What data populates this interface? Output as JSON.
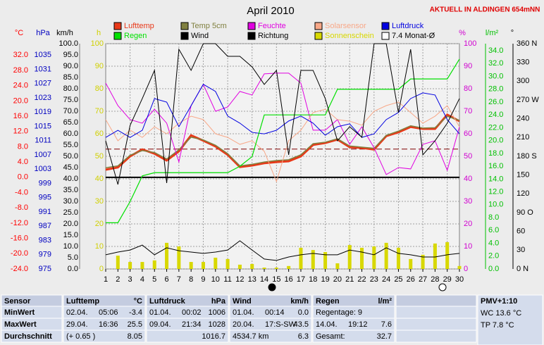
{
  "chart_data": {
    "type": "line",
    "title": "April 2010",
    "subtitle": "AKTUELL IN ALDINGEN 654mNN",
    "x": [
      1,
      2,
      3,
      4,
      5,
      6,
      7,
      8,
      9,
      10,
      11,
      12,
      13,
      14,
      15,
      16,
      17,
      18,
      19,
      20,
      21,
      22,
      23,
      24,
      25,
      26,
      27,
      28,
      29,
      30
    ],
    "xlim": [
      1,
      30
    ],
    "xticks": [
      1,
      2,
      3,
      4,
      5,
      6,
      7,
      8,
      9,
      10,
      11,
      12,
      13,
      14,
      15,
      16,
      17,
      18,
      19,
      20,
      21,
      22,
      23,
      24,
      25,
      26,
      27,
      28,
      29,
      30
    ],
    "grid": true,
    "axes": {
      "temp": {
        "label": "°C",
        "color": "#ff0000",
        "lim": [
          -24,
          35
        ],
        "ticks": [
          {
            "value": 32,
            "label": "32.0"
          },
          {
            "value": 28,
            "label": "28.0"
          },
          {
            "value": 24,
            "label": "24.0"
          },
          {
            "value": 20,
            "label": "20.0"
          },
          {
            "value": 16,
            "label": "16.0"
          },
          {
            "value": 12,
            "label": "12.0"
          },
          {
            "value": 8,
            "label": "8.0"
          },
          {
            "value": 4,
            "label": "4.0"
          },
          {
            "value": 0,
            "label": "0.0"
          },
          {
            "value": -4,
            "label": "-4.0"
          },
          {
            "value": -8,
            "label": "-8.0"
          },
          {
            "value": -12,
            "label": "-12.0"
          },
          {
            "value": -16,
            "label": "-16.0"
          },
          {
            "value": -20,
            "label": "-20.0"
          },
          {
            "value": -24,
            "label": "-24.0"
          }
        ]
      },
      "hpa": {
        "label": "hPa",
        "color": "#0000c0",
        "lim": [
          975,
          1038.2
        ],
        "ticks": [
          1035,
          1031,
          1027,
          1023,
          1019,
          1015,
          1011,
          1007,
          1003,
          999,
          995,
          991,
          987,
          983,
          979,
          975
        ]
      },
      "kmh": {
        "label": "km/h",
        "color": "#000000",
        "lim": [
          0,
          100
        ],
        "ticks": [
          {
            "value": 100,
            "label": "100.0"
          },
          {
            "value": 95,
            "label": "95.0"
          },
          {
            "value": 90,
            "label": "90.0"
          },
          {
            "value": 85,
            "label": "85.0"
          },
          {
            "value": 80,
            "label": "80.0"
          },
          {
            "value": 75,
            "label": "75.0"
          },
          {
            "value": 70,
            "label": "70.0"
          },
          {
            "value": 65,
            "label": "65.0"
          },
          {
            "value": 60,
            "label": "60.0"
          },
          {
            "value": 55,
            "label": "55.0"
          },
          {
            "value": 50,
            "label": "50.0"
          },
          {
            "value": 45,
            "label": "45.0"
          },
          {
            "value": 40,
            "label": "40.0"
          },
          {
            "value": 35,
            "label": "35.0"
          },
          {
            "value": 30,
            "label": "30.0"
          },
          {
            "value": 25,
            "label": "25.0"
          },
          {
            "value": 20,
            "label": "20.0"
          },
          {
            "value": 15,
            "label": "15.0"
          },
          {
            "value": 10,
            "label": "10.0"
          },
          {
            "value": 5,
            "label": "5.0"
          },
          {
            "value": 0,
            "label": "0.0"
          }
        ]
      },
      "h": {
        "label": "h",
        "color": "#d0d000",
        "lim": [
          0,
          100
        ],
        "ticks": [
          100,
          90,
          80,
          70,
          60,
          50,
          40,
          30,
          20,
          10,
          0
        ]
      },
      "pct": {
        "label": "%",
        "color": "#d000d0",
        "lim": [
          0,
          100
        ],
        "ticks": [
          100,
          90,
          80,
          70,
          60,
          50,
          40,
          30,
          20,
          10,
          0
        ]
      },
      "rain": {
        "label": "l/m²",
        "color": "#00c000",
        "lim": [
          0,
          35.1
        ],
        "ticks": [
          {
            "value": 34,
            "label": "34.0"
          },
          {
            "value": 32,
            "label": "32.0"
          },
          {
            "value": 30,
            "label": "30.0"
          },
          {
            "value": 28,
            "label": "28.0"
          },
          {
            "value": 26,
            "label": "26.0"
          },
          {
            "value": 24,
            "label": "24.0"
          },
          {
            "value": 22,
            "label": "22.0"
          },
          {
            "value": 20,
            "label": "20.0"
          },
          {
            "value": 18,
            "label": "18.0"
          },
          {
            "value": 16,
            "label": "16.0"
          },
          {
            "value": 14,
            "label": "14.0"
          },
          {
            "value": 12,
            "label": "12.0"
          },
          {
            "value": 10,
            "label": "10.0"
          },
          {
            "value": 8,
            "label": "8.0"
          },
          {
            "value": 6,
            "label": "6.0"
          },
          {
            "value": 4,
            "label": "4.0"
          },
          {
            "value": 2,
            "label": "2.0"
          },
          {
            "value": 0,
            "label": "0.0"
          }
        ]
      },
      "deg": {
        "label": "°",
        "color": "#000000",
        "lim": [
          0,
          360
        ],
        "ticks": [
          {
            "value": 360,
            "label": "360 N"
          },
          330,
          300,
          {
            "value": 270,
            "label": "270 W"
          },
          240,
          210,
          {
            "value": 180,
            "label": "180 S"
          },
          150,
          120,
          {
            "value": 90,
            "label": "90 O"
          },
          60,
          30,
          {
            "value": 0,
            "label": "0 N"
          }
        ]
      }
    },
    "series": [
      {
        "name": "Lufttemp",
        "color": "#e83818",
        "axis": "temp",
        "width": 3,
        "values": [
          2.0,
          2.6,
          5.5,
          7.3,
          6.2,
          4.4,
          6.8,
          11.0,
          9.6,
          8.1,
          5.9,
          2.7,
          3.1,
          3.7,
          4.0,
          4.2,
          5.5,
          8.5,
          9.0,
          9.9,
          7.9,
          7.7,
          7.3,
          10.8,
          11.8,
          13.2,
          12.7,
          12.7,
          16.4,
          14.7
        ]
      },
      {
        "name": "Temp 5cm",
        "color": "#808040",
        "axis": "temp",
        "width": 1.5,
        "values": [
          2.5,
          3.0,
          5.8,
          7.0,
          6.5,
          4.8,
          7.2,
          10.5,
          9.8,
          8.4,
          6.2,
          3.0,
          3.4,
          4.0,
          4.4,
          4.6,
          5.9,
          8.8,
          9.2,
          10.1,
          8.2,
          7.9,
          7.6,
          11.0,
          12.1,
          13.5,
          12.9,
          13.0,
          16.0,
          14.9
        ]
      },
      {
        "name": "Feuchte",
        "color": "#e000e0",
        "axis": "pct",
        "width": 1,
        "values": [
          82.5,
          72.5,
          66.3,
          64.7,
          70.9,
          64.7,
          47.5,
          72.5,
          81.9,
          70.0,
          71.9,
          78.8,
          77.2,
          86.6,
          86.9,
          86.9,
          82.5,
          61.6,
          61.6,
          66.3,
          55.3,
          63.1,
          53.8,
          41.9,
          45.0,
          44.4,
          55.3,
          56.9,
          43.8,
          63.1
        ]
      },
      {
        "name": "Solarsensor",
        "color": "#f8a888",
        "axis": "pct",
        "width": 1,
        "values": [
          66.3,
          56.9,
          61.6,
          58.4,
          63.1,
          60.0,
          64.7,
          67.8,
          66.3,
          60.0,
          58.4,
          55.3,
          56.9,
          52.2,
          38.8,
          56.9,
          61.6,
          69.4,
          70.9,
          66.3,
          65.6,
          63.8,
          70.0,
          72.5,
          74.1,
          69.4,
          64.7,
          67.8,
          72.5,
          63.1
        ]
      },
      {
        "name": "Luftdruck",
        "color": "#0000e0",
        "axis": "hpa",
        "width": 1,
        "values": [
          1011.9,
          1013.9,
          1011.9,
          1013.9,
          1022.8,
          1021.8,
          1014.9,
          1020.8,
          1026.8,
          1024.8,
          1017.9,
          1015.9,
          1013.3,
          1012.9,
          1013.9,
          1016.5,
          1017.9,
          1015.9,
          1012.5,
          1014.9,
          1015.7,
          1011.9,
          1012.9,
          1016.9,
          1018.9,
          1022.8,
          1024.4,
          1023.8,
          1016.9,
          1012.9
        ]
      },
      {
        "name": "Regen",
        "color": "#00e000",
        "axis": "rain",
        "width": 1.2,
        "values": [
          7.2,
          7.2,
          10.5,
          14.5,
          15.0,
          15.0,
          15.0,
          15.0,
          15.0,
          15.0,
          15.0,
          16.0,
          17.5,
          24.0,
          24.0,
          24.0,
          24.0,
          24.0,
          24.0,
          28.0,
          28.0,
          28.0,
          28.0,
          28.0,
          28.0,
          29.6,
          29.6,
          29.6,
          29.6,
          32.7
        ]
      },
      {
        "name": "Wind",
        "color": "#000000",
        "axis": "kmh",
        "width": 1,
        "values": [
          6.3,
          7.5,
          8.4,
          10.6,
          6.3,
          9.4,
          8.1,
          7.5,
          6.9,
          7.5,
          8.4,
          12.5,
          8.4,
          4.4,
          3.8,
          5.3,
          6.3,
          6.9,
          6.3,
          6.3,
          8.4,
          7.5,
          6.3,
          9.4,
          6.9,
          6.3,
          5.3,
          5.3,
          6.3,
          6.9
        ]
      },
      {
        "name": "Richtung",
        "color": "#000000",
        "axis": "deg",
        "width": 1,
        "values": [
          204.8,
          135.0,
          229.5,
          272.3,
          317.3,
          137.3,
          351.0,
          317.3,
          360,
          360,
          339.8,
          339.8,
          322.9,
          294.8,
          317.3,
          182.3,
          317.3,
          317.3,
          272.3,
          204.8,
          227.3,
          210.4,
          360,
          360,
          249.8,
          351.0,
          182.3,
          204.8,
          232.9,
          272.3
        ]
      },
      {
        "name": "Sonnenschein",
        "color": "#d8d800",
        "axis": "h",
        "type": "bar",
        "values": [
          0,
          5.9,
          3.1,
          3.1,
          3.8,
          11.6,
          10.0,
          3.1,
          3.1,
          5.0,
          4.4,
          1.9,
          2.2,
          0.6,
          0.6,
          1.3,
          9.4,
          8.4,
          7.5,
          2.5,
          10.6,
          9.4,
          10.0,
          11.6,
          9.4,
          4.4,
          6.3,
          11.3,
          11.9,
          1.3
        ]
      }
    ],
    "monthly_mean": {
      "name": "Monat-Ø",
      "value": 7.4,
      "label": "7.4 Monat-Ø",
      "axis": "temp",
      "color": "#800000"
    }
  },
  "table": {
    "header": [
      [
        "Sensor"
      ],
      [
        "Lufttemp",
        "°C"
      ],
      [
        "Luftdruck",
        "hPa"
      ],
      [
        "Wind",
        "km/h"
      ],
      [
        "Regen",
        "l/m²"
      ],
      [],
      [
        "PMV+1:10"
      ]
    ],
    "rows": [
      [
        [
          "MinWert"
        ],
        [
          "02.04.",
          "05:06",
          "-3.4"
        ],
        [
          "01.04.",
          "00:02",
          "1006"
        ],
        [
          "01.04.",
          "00:14",
          "0.0"
        ],
        [
          "Regentage: 9"
        ],
        [],
        [
          "WC 13.6 °C"
        ]
      ],
      [
        [
          "MaxWert"
        ],
        [
          "29.04.",
          "16:36",
          "25.5"
        ],
        [
          "09.04.",
          "21:34",
          "1028"
        ],
        [
          "20.04.",
          "17:S-SW",
          "43.5"
        ],
        [
          "14.04.",
          "19:12",
          "7.6"
        ],
        [],
        [
          "TP 7.8 °C"
        ]
      ],
      [
        [
          "Durchschnitt"
        ],
        [
          "(+ 0.65 )",
          "8.05"
        ],
        [
          "1016.7"
        ],
        [
          "4534.7 km",
          "6.3"
        ],
        [
          "Gesamt:",
          "32.7"
        ],
        [],
        []
      ]
    ]
  }
}
